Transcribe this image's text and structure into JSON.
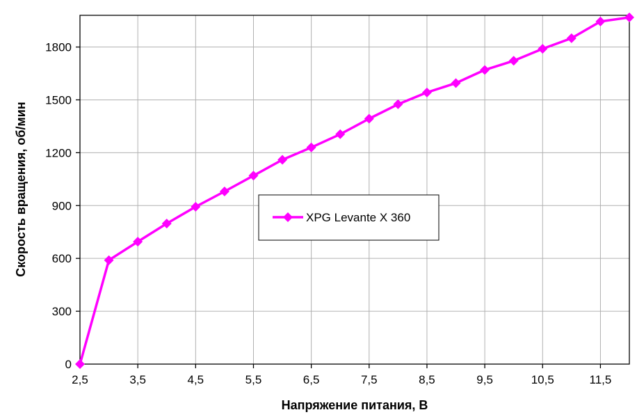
{
  "chart_data": {
    "type": "line",
    "xlabel": "Напряжение питания, В",
    "ylabel": "Скорость вращения, об/мин",
    "xlim": [
      2.5,
      12.0
    ],
    "ylim": [
      0,
      1980
    ],
    "x_ticks": [
      2.5,
      3.5,
      4.5,
      5.5,
      6.5,
      7.5,
      8.5,
      9.5,
      10.5,
      11.5
    ],
    "x_tick_labels": [
      "2,5",
      "3,5",
      "4,5",
      "5,5",
      "6,5",
      "7,5",
      "8,5",
      "9,5",
      "10,5",
      "11,5"
    ],
    "y_ticks": [
      0,
      300,
      600,
      900,
      1200,
      1500,
      1800
    ],
    "y_tick_labels": [
      "0",
      "300",
      "600",
      "900",
      "1200",
      "1500",
      "1800"
    ],
    "grid": true,
    "legend_position": "center",
    "series": [
      {
        "name": "XPG Levante X 360",
        "color": "#ff00ff",
        "marker": "diamond",
        "x": [
          2.5,
          3.0,
          3.5,
          4.0,
          4.5,
          5.0,
          5.5,
          6.0,
          6.5,
          7.0,
          7.5,
          8.0,
          8.5,
          9.0,
          9.5,
          10.0,
          10.5,
          11.0,
          11.5,
          12.0
        ],
        "y": [
          0,
          590,
          695,
          798,
          893,
          980,
          1070,
          1160,
          1230,
          1305,
          1393,
          1475,
          1542,
          1595,
          1670,
          1722,
          1790,
          1850,
          1945,
          1968
        ]
      }
    ]
  }
}
